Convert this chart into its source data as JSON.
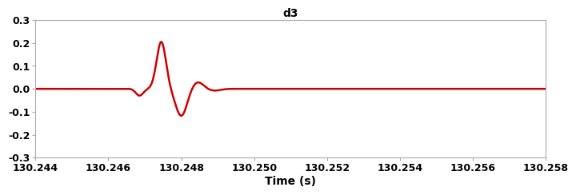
{
  "title": "d3",
  "xlabel": "Time (s)",
  "ylabel": "",
  "xlim": [
    130.244,
    130.258
  ],
  "ylim": [
    -0.3,
    0.3
  ],
  "xticks": [
    130.244,
    130.246,
    130.248,
    130.25,
    130.252,
    130.254,
    130.256,
    130.258
  ],
  "yticks": [
    -0.3,
    -0.2,
    -0.1,
    0.0,
    0.1,
    0.2,
    0.3
  ],
  "line_color": "#cc0000",
  "line_width": 1.8,
  "background_color": "#ffffff",
  "title_fontsize": 10,
  "label_fontsize": 10,
  "tick_fontsize": 9
}
